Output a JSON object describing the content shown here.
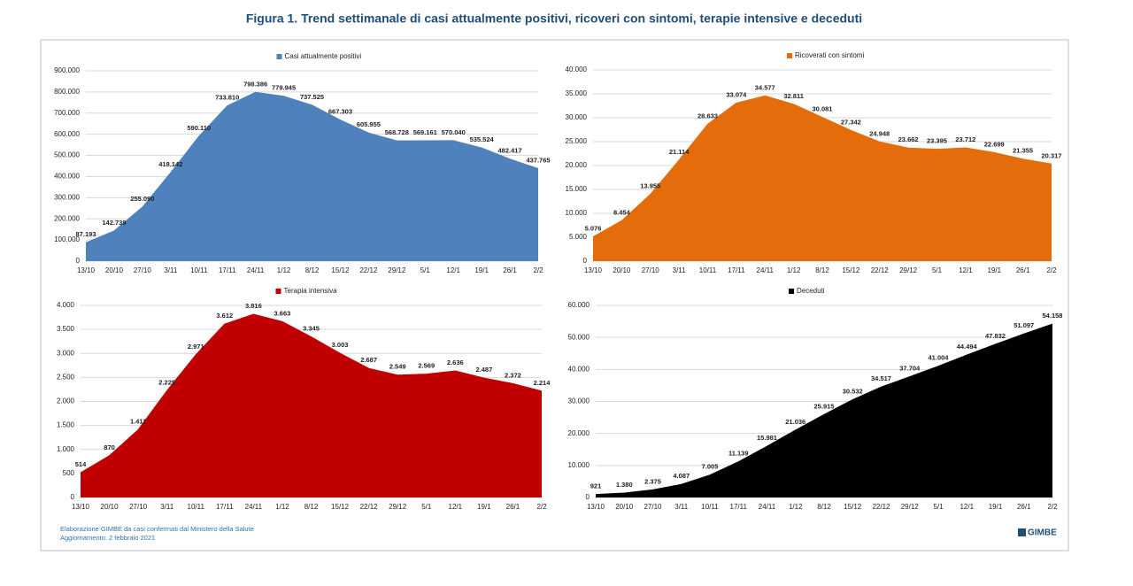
{
  "title": "Figura 1. Trend settimanale di casi attualmente positivi, ricoveri con sintomi, terapie intensive e deceduti",
  "source": "Elaborazione GIMBE da casi confermati dal Ministero della Salute",
  "updated": "Aggiornamento: 2 febbraio 2021",
  "logo": "GIMBE",
  "chart_data": [
    {
      "type": "area",
      "categories": [
        "13/10",
        "20/10",
        "27/10",
        "3/11",
        "10/11",
        "17/11",
        "24/11",
        "1/12",
        "8/12",
        "15/12",
        "22/12",
        "29/12",
        "5/1",
        "12/1",
        "19/1",
        "26/1",
        "2/2"
      ],
      "series": [
        {
          "name": "Casi attualmente positivi",
          "color": "#4f81bd",
          "values": [
            87193,
            142739,
            255090,
            418142,
            590110,
            733810,
            798386,
            779945,
            737525,
            667303,
            605955,
            568728,
            569161,
            570040,
            535524,
            482417,
            437765
          ],
          "value_labels": [
            "87.193",
            "142.739",
            "255.090",
            "418.142",
            "590.110",
            "733.810",
            "798.386",
            "779.945",
            "737.525",
            "667.303",
            "605.955",
            "568.728",
            "569.161",
            "570.040",
            "535.524",
            "482.417",
            "437.765"
          ]
        }
      ],
      "ylim": [
        0,
        900000
      ],
      "yticks": [
        0,
        {
          "value": 100000,
          "label": "100.000"
        },
        {
          "value": 200000,
          "label": "200.000"
        },
        {
          "value": 300000,
          "label": "300.000"
        },
        {
          "value": 400000,
          "label": "400.000"
        },
        {
          "value": 500000,
          "label": "500.000"
        },
        {
          "value": 600000,
          "label": "600.000"
        },
        {
          "value": 700000,
          "label": "700.000"
        },
        {
          "value": 800000,
          "label": "800.000"
        },
        {
          "value": 900000,
          "label": "900.000"
        }
      ],
      "grid": true
    },
    {
      "type": "area",
      "categories": [
        "13/10",
        "20/10",
        "27/10",
        "3/11",
        "10/11",
        "17/11",
        "24/11",
        "1/12",
        "8/12",
        "15/12",
        "22/12",
        "29/12",
        "5/1",
        "12/1",
        "19/1",
        "26/1",
        "2/2"
      ],
      "series": [
        {
          "name": "Ricoverati con sintomi",
          "color": "#e46c0a",
          "values": [
            5076,
            8454,
            13955,
            21114,
            28633,
            33074,
            34577,
            32811,
            30081,
            27342,
            24948,
            23662,
            23395,
            23712,
            22699,
            21355,
            20317
          ],
          "value_labels": [
            "5.076",
            "8.454",
            "13.955",
            "21.114",
            "28.633",
            "33.074",
            "34.577",
            "32.811",
            "30.081",
            "27.342",
            "24.948",
            "23.662",
            "23.395",
            "23.712",
            "22.699",
            "21.355",
            "20.317"
          ]
        }
      ],
      "ylim": [
        0,
        40000
      ],
      "yticks": [
        0,
        {
          "value": 5000,
          "label": "5.000"
        },
        {
          "value": 10000,
          "label": "10.000"
        },
        {
          "value": 15000,
          "label": "15.000"
        },
        {
          "value": 20000,
          "label": "20.000"
        },
        {
          "value": 25000,
          "label": "25.000"
        },
        {
          "value": 30000,
          "label": "30.000"
        },
        {
          "value": 35000,
          "label": "35.000"
        },
        {
          "value": 40000,
          "label": "40.000"
        }
      ],
      "grid": true
    },
    {
      "type": "area",
      "categories": [
        "13/10",
        "20/10",
        "27/10",
        "3/11",
        "10/11",
        "17/11",
        "24/11",
        "1/12",
        "8/12",
        "15/12",
        "22/12",
        "29/12",
        "5/1",
        "12/1",
        "19/1",
        "26/1",
        "2/2"
      ],
      "series": [
        {
          "name": "Terapia intensiva",
          "color": "#c00000",
          "values": [
            514,
            870,
            1411,
            2225,
            2971,
            3612,
            3816,
            3663,
            3345,
            3003,
            2687,
            2549,
            2569,
            2636,
            2487,
            2372,
            2214
          ],
          "value_labels": [
            "514",
            "870",
            "1.411",
            "2.225",
            "2.971",
            "3.612",
            "3.816",
            "3.663",
            "3.345",
            "3.003",
            "2.687",
            "2.549",
            "2.569",
            "2.636",
            "2.487",
            "2.372",
            "2.214"
          ]
        }
      ],
      "ylim": [
        0,
        4000
      ],
      "yticks": [
        0,
        500,
        {
          "value": 1000,
          "label": "1.000"
        },
        {
          "value": 1500,
          "label": "1.500"
        },
        {
          "value": 2000,
          "label": "2.000"
        },
        {
          "value": 2500,
          "label": "2.500"
        },
        {
          "value": 3000,
          "label": "3.000"
        },
        {
          "value": 3500,
          "label": "3.500"
        },
        {
          "value": 4000,
          "label": "4.000"
        }
      ],
      "grid": true
    },
    {
      "type": "area",
      "categories": [
        "13/10",
        "20/10",
        "27/10",
        "3/11",
        "10/11",
        "17/11",
        "24/11",
        "1/12",
        "8/12",
        "15/12",
        "22/12",
        "29/12",
        "5/1",
        "12/1",
        "19/1",
        "26/1",
        "2/2"
      ],
      "series": [
        {
          "name": "Deceduti",
          "color": "#000000",
          "values": [
            921,
            1380,
            2375,
            4087,
            7005,
            11139,
            15981,
            21036,
            25915,
            30532,
            34517,
            37704,
            41004,
            44494,
            47832,
            51097,
            54158
          ],
          "value_labels": [
            "921",
            "1.380",
            "2.375",
            "4.087",
            "7.005",
            "11.139",
            "15.981",
            "21.036",
            "25.915",
            "30.532",
            "34.517",
            "37.704",
            "41.004",
            "44.494",
            "47.832",
            "51.097",
            "54.158"
          ]
        }
      ],
      "ylim": [
        0,
        60000
      ],
      "yticks": [
        0,
        {
          "value": 10000,
          "label": "10.000"
        },
        {
          "value": 20000,
          "label": "20.000"
        },
        {
          "value": 30000,
          "label": "30.000"
        },
        {
          "value": 40000,
          "label": "40.000"
        },
        {
          "value": 50000,
          "label": "50.000"
        },
        {
          "value": 60000,
          "label": "60.000"
        }
      ],
      "grid": true
    }
  ]
}
